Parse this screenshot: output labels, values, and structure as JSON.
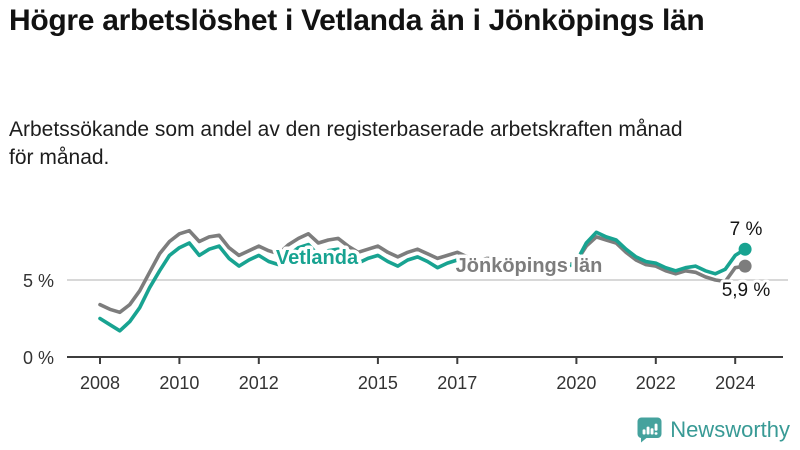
{
  "title": "Högre arbetslöshet i Vetlanda än i Jönköpings län",
  "subtitle": "Arbetssökande som andel av den registerbaserade arbetskraften månad för månad.",
  "footer": {
    "brand": "Newsworthy",
    "brand_color": "#389a95",
    "logo_icon": "bar-chart-speech-bubble-icon"
  },
  "chart_data": {
    "type": "line",
    "title": "Högre arbetslöshet i Vetlanda än i Jönköpings län",
    "xlabel": "",
    "ylabel": "",
    "x_start": 2008.0,
    "x_step": 0.25,
    "xlim": [
      2007.9,
      2024.5
    ],
    "ylim": [
      0,
      9
    ],
    "grid": "single horizontal gridline at 5%",
    "legend_position": "inline labels on lines",
    "x_ticks": [
      {
        "label": "2008",
        "value": 2008
      },
      {
        "label": "2010",
        "value": 2010
      },
      {
        "label": "2012",
        "value": 2012
      },
      {
        "label": "2015",
        "value": 2015
      },
      {
        "label": "2017",
        "value": 2017
      },
      {
        "label": "2020",
        "value": 2020
      },
      {
        "label": "2022",
        "value": 2022
      },
      {
        "label": "2024",
        "value": 2024
      }
    ],
    "y_ticks": [
      {
        "label": "0 %",
        "value": 0
      },
      {
        "label": "5 %",
        "value": 5
      }
    ],
    "colors": {
      "gridline": "#d8d8d8",
      "axis": "#3d3d3d",
      "annotation_text": "#141414"
    },
    "series": [
      {
        "name": "Jönköpings län",
        "color": "#7d7d7d",
        "end_label": "5,9 %",
        "end_value": 5.9,
        "values": [
          3.4,
          3.1,
          2.9,
          3.4,
          4.3,
          5.5,
          6.7,
          7.5,
          8.0,
          8.2,
          7.5,
          7.8,
          7.9,
          7.1,
          6.6,
          6.9,
          7.2,
          6.9,
          6.7,
          7.3,
          7.7,
          8.0,
          7.4,
          7.6,
          7.7,
          7.2,
          6.8,
          7.0,
          7.2,
          6.8,
          6.5,
          6.8,
          7.0,
          6.7,
          6.4,
          6.6,
          6.8,
          6.5,
          6.2,
          6.4,
          6.4,
          6.1,
          5.9,
          6.0,
          6.1,
          5.8,
          5.6,
          5.9,
          6.2,
          7.2,
          7.8,
          7.6,
          7.4,
          6.8,
          6.3,
          6.0,
          5.9,
          5.6,
          5.4,
          5.6,
          5.5,
          5.2,
          5.0,
          4.9,
          5.8,
          5.9
        ]
      },
      {
        "name": "Vetlanda",
        "color": "#18a391",
        "end_label": "7 %",
        "end_value": 7.0,
        "values": [
          2.5,
          2.1,
          1.7,
          2.3,
          3.2,
          4.5,
          5.6,
          6.6,
          7.1,
          7.4,
          6.6,
          7.0,
          7.2,
          6.4,
          5.9,
          6.3,
          6.6,
          6.2,
          6.0,
          6.6,
          7.1,
          7.3,
          6.6,
          6.9,
          7.0,
          6.5,
          6.1,
          6.4,
          6.6,
          6.2,
          5.9,
          6.3,
          6.5,
          6.2,
          5.8,
          6.1,
          6.3,
          6.0,
          5.7,
          5.9,
          6.0,
          5.7,
          5.5,
          5.6,
          5.8,
          5.6,
          5.5,
          5.8,
          6.2,
          7.4,
          8.1,
          7.8,
          7.6,
          7.0,
          6.5,
          6.2,
          6.1,
          5.8,
          5.6,
          5.8,
          5.9,
          5.6,
          5.4,
          5.7,
          6.6,
          7.0
        ]
      }
    ]
  }
}
